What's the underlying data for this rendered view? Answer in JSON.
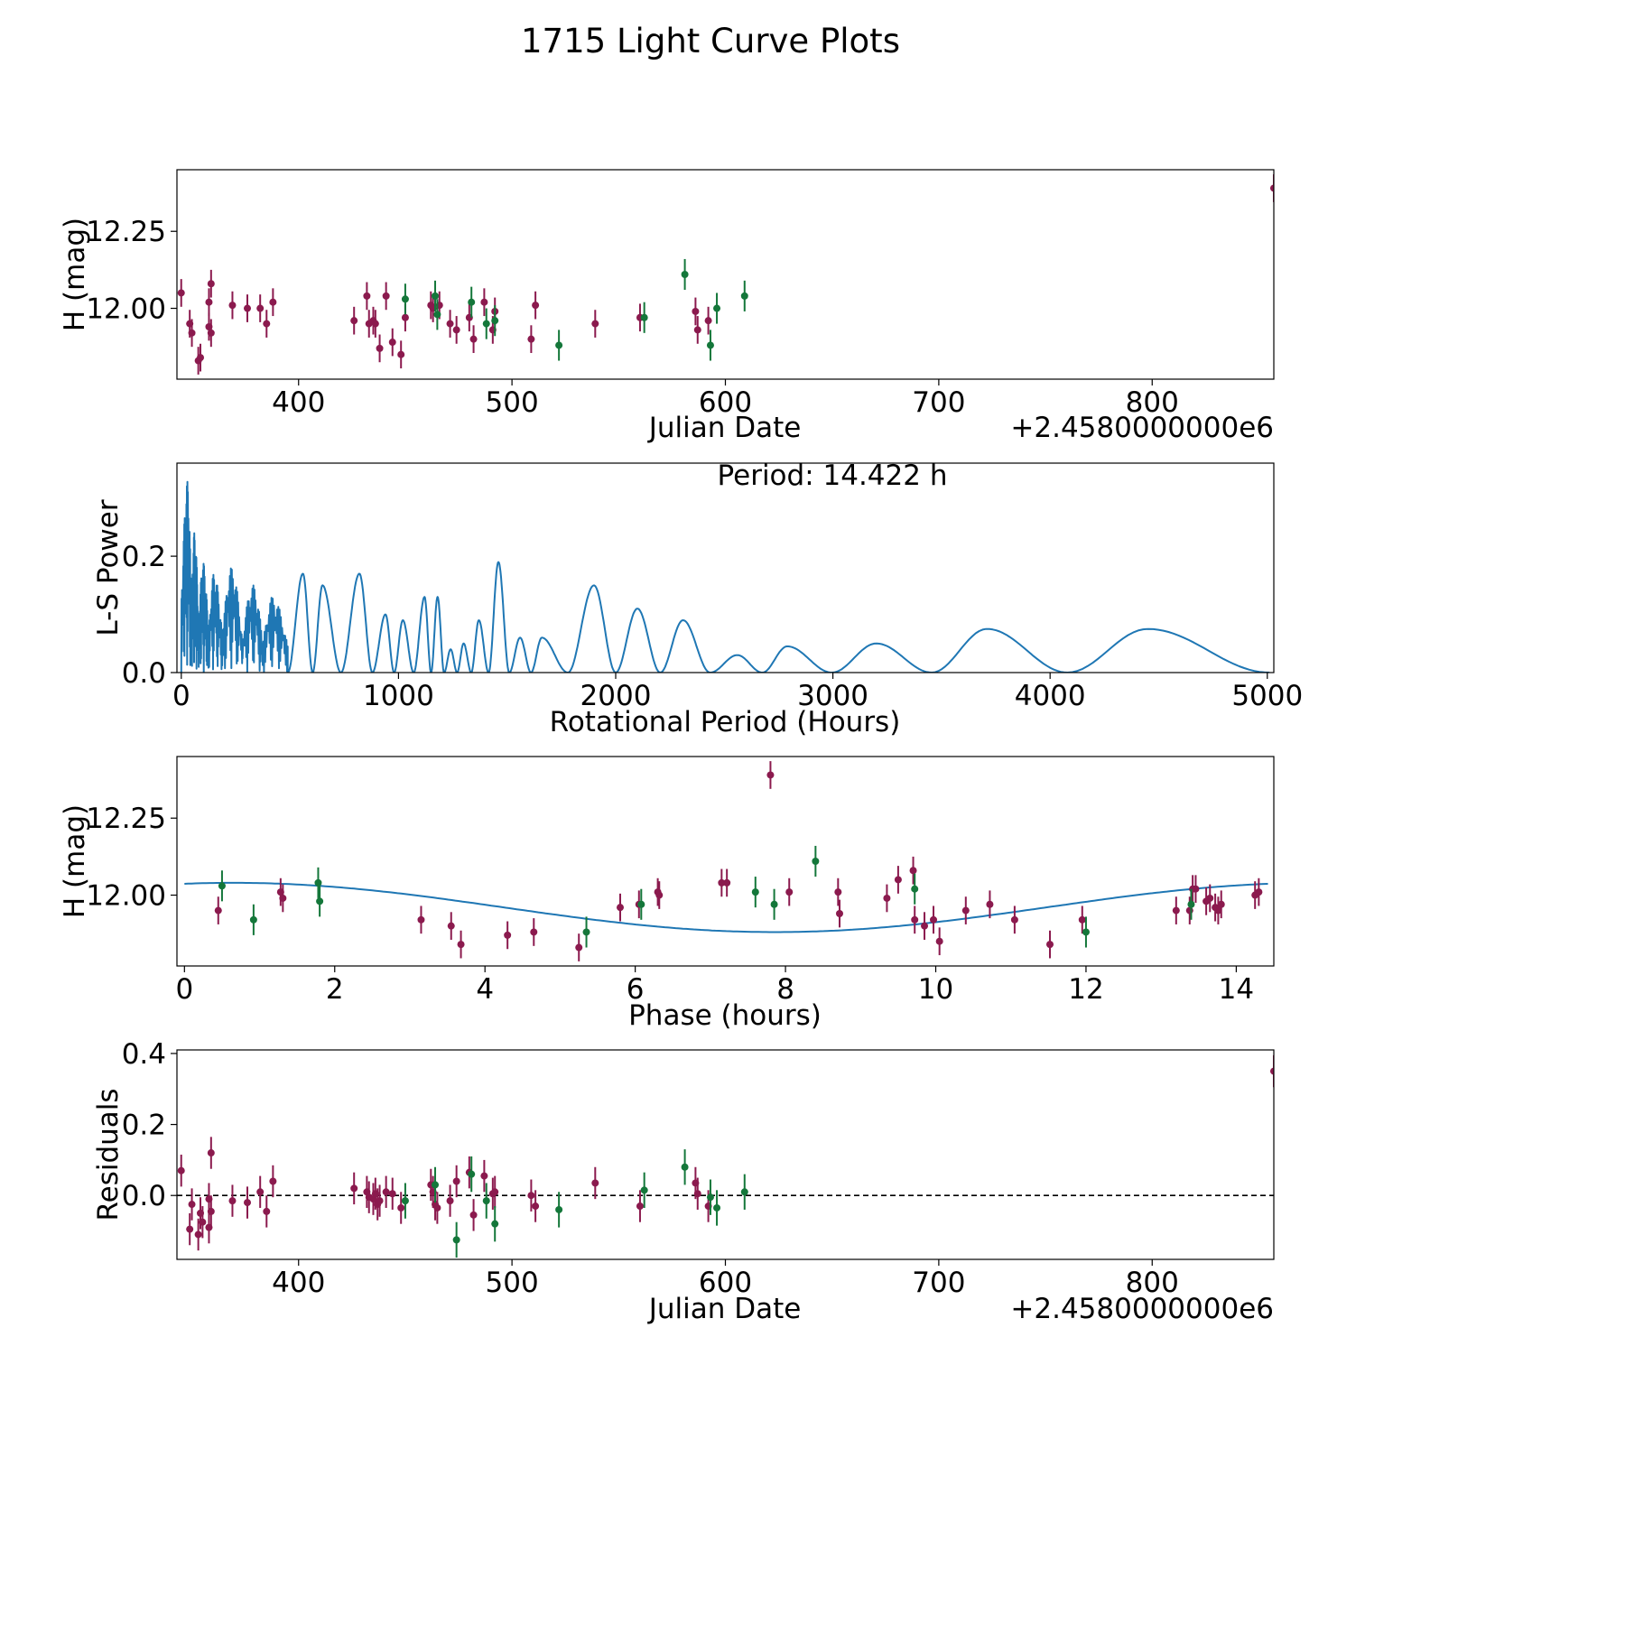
{
  "figure_title": "1715 Light Curve Plots",
  "colors": {
    "maroon": "#8b1a4e",
    "green": "#14773a",
    "line": "#1f77b4"
  },
  "chart_data": [
    {
      "type": "scatter",
      "name": "Light curve",
      "xlabel": "Julian Date",
      "ylabel": "H (mag)",
      "offset_text": "+2.4580000000e6",
      "xlim": [
        343,
        857
      ],
      "ylim": [
        11.77,
        12.45
      ],
      "xticks": [
        400,
        500,
        600,
        700,
        800
      ],
      "yticks": [
        12.0,
        12.25
      ],
      "ytick_labels": [
        "12.00",
        "12.25"
      ],
      "series": [
        {
          "name": "maroon",
          "color": "#8b1a4e",
          "err": 0.045,
          "points": [
            [
              345,
              12.05
            ],
            [
              349,
              11.95
            ],
            [
              350,
              11.92
            ],
            [
              353,
              11.83
            ],
            [
              354,
              11.84
            ],
            [
              358,
              12.02
            ],
            [
              358,
              11.94
            ],
            [
              359,
              12.08
            ],
            [
              359,
              11.92
            ],
            [
              369,
              12.01
            ],
            [
              376,
              12.0
            ],
            [
              382,
              12.0
            ],
            [
              385,
              11.95
            ],
            [
              388,
              12.02
            ],
            [
              426,
              11.96
            ],
            [
              432,
              12.04
            ],
            [
              433,
              11.95
            ],
            [
              435,
              11.96
            ],
            [
              436,
              11.95
            ],
            [
              438,
              11.87
            ],
            [
              441,
              12.04
            ],
            [
              444,
              11.89
            ],
            [
              448,
              11.85
            ],
            [
              450,
              11.97
            ],
            [
              462,
              12.01
            ],
            [
              463,
              12.0
            ],
            [
              466,
              12.01
            ],
            [
              471,
              11.95
            ],
            [
              474,
              11.93
            ],
            [
              480,
              11.97
            ],
            [
              482,
              11.9
            ],
            [
              487,
              12.02
            ],
            [
              491,
              11.93
            ],
            [
              492,
              11.99
            ],
            [
              509,
              11.9
            ],
            [
              511,
              12.01
            ],
            [
              539,
              11.95
            ],
            [
              560,
              11.97
            ],
            [
              586,
              11.99
            ],
            [
              587,
              11.93
            ],
            [
              592,
              11.96
            ],
            [
              857,
              12.39
            ]
          ]
        },
        {
          "name": "green",
          "color": "#14773a",
          "err": 0.05,
          "points": [
            [
              450,
              12.03
            ],
            [
              464,
              12.04
            ],
            [
              465,
              11.98
            ],
            [
              481,
              12.02
            ],
            [
              488,
              11.95
            ],
            [
              492,
              11.96
            ],
            [
              522,
              11.88
            ],
            [
              562,
              11.97
            ],
            [
              581,
              12.11
            ],
            [
              593,
              11.88
            ],
            [
              596,
              12.0
            ],
            [
              609,
              12.04
            ]
          ]
        }
      ]
    },
    {
      "type": "line",
      "name": "Periodogram",
      "xlabel": "Rotational Period (Hours)",
      "ylabel": "L-S Power",
      "annotation": "Period: 14.422 h",
      "xlim": [
        -20,
        5030
      ],
      "ylim": [
        0,
        0.36
      ],
      "xticks": [
        0,
        1000,
        2000,
        3000,
        4000,
        5000
      ],
      "yticks": [
        0.0,
        0.2
      ],
      "ytick_labels": [
        "0.0",
        "0.2"
      ],
      "peaks": [
        [
          30,
          0.33
        ],
        [
          60,
          0.24
        ],
        [
          100,
          0.19
        ],
        [
          150,
          0.17
        ],
        [
          230,
          0.18
        ],
        [
          330,
          0.15
        ],
        [
          420,
          0.13
        ],
        [
          560,
          0.17
        ],
        [
          650,
          0.15
        ],
        [
          820,
          0.17
        ],
        [
          940,
          0.1
        ],
        [
          1020,
          0.09
        ],
        [
          1120,
          0.13
        ],
        [
          1180,
          0.13
        ],
        [
          1240,
          0.04
        ],
        [
          1300,
          0.05
        ],
        [
          1370,
          0.09
        ],
        [
          1460,
          0.19
        ],
        [
          1560,
          0.06
        ],
        [
          1660,
          0.06
        ],
        [
          1900,
          0.15
        ],
        [
          2100,
          0.11
        ],
        [
          2310,
          0.09
        ],
        [
          2560,
          0.03
        ],
        [
          2790,
          0.045
        ],
        [
          3200,
          0.05
        ],
        [
          3710,
          0.075
        ],
        [
          4450,
          0.075
        ]
      ]
    },
    {
      "type": "scatter",
      "name": "Phased light curve",
      "xlabel": "Phase (hours)",
      "ylabel": "H (mag)",
      "xlim": [
        -0.1,
        14.5
      ],
      "ylim": [
        11.77,
        12.45
      ],
      "xticks": [
        0,
        2,
        4,
        6,
        8,
        10,
        12,
        14
      ],
      "yticks": [
        12.0,
        12.25
      ],
      "ytick_labels": [
        "12.00",
        "12.25"
      ],
      "model": {
        "type": "sine",
        "period_h": 14.422,
        "mean": 11.96,
        "amplitude": 0.08,
        "max_at_h": 0.65
      },
      "series": [
        {
          "name": "maroon",
          "color": "#8b1a4e",
          "err": 0.045,
          "points": [
            [
              0.45,
              11.95
            ],
            [
              1.28,
              12.01
            ],
            [
              1.31,
              11.99
            ],
            [
              3.15,
              11.92
            ],
            [
              3.55,
              11.9
            ],
            [
              3.68,
              11.84
            ],
            [
              4.3,
              11.87
            ],
            [
              4.65,
              11.88
            ],
            [
              5.25,
              11.83
            ],
            [
              5.8,
              11.96
            ],
            [
              6.05,
              11.97
            ],
            [
              6.3,
              12.01
            ],
            [
              6.32,
              12.0
            ],
            [
              7.15,
              12.04
            ],
            [
              7.22,
              12.04
            ],
            [
              7.8,
              12.39
            ],
            [
              8.05,
              12.01
            ],
            [
              8.7,
              12.01
            ],
            [
              8.72,
              11.94
            ],
            [
              9.35,
              11.99
            ],
            [
              9.5,
              12.05
            ],
            [
              9.7,
              12.08
            ],
            [
              9.72,
              11.92
            ],
            [
              9.85,
              11.9
            ],
            [
              9.97,
              11.92
            ],
            [
              10.05,
              11.85
            ],
            [
              10.4,
              11.95
            ],
            [
              10.72,
              11.97
            ],
            [
              11.05,
              11.92
            ],
            [
              11.52,
              11.84
            ],
            [
              11.95,
              11.92
            ],
            [
              13.2,
              11.95
            ],
            [
              13.38,
              11.95
            ],
            [
              13.42,
              12.02
            ],
            [
              13.46,
              12.02
            ],
            [
              13.6,
              11.98
            ],
            [
              13.65,
              11.99
            ],
            [
              13.72,
              11.96
            ],
            [
              13.76,
              11.95
            ],
            [
              13.8,
              11.97
            ],
            [
              14.25,
              12.0
            ],
            [
              14.3,
              12.01
            ]
          ]
        },
        {
          "name": "green",
          "color": "#14773a",
          "err": 0.05,
          "points": [
            [
              0.5,
              12.03
            ],
            [
              0.92,
              11.92
            ],
            [
              1.78,
              12.04
            ],
            [
              1.8,
              11.98
            ],
            [
              5.35,
              11.88
            ],
            [
              6.08,
              11.97
            ],
            [
              7.6,
              12.01
            ],
            [
              7.85,
              11.97
            ],
            [
              8.4,
              12.11
            ],
            [
              9.72,
              12.02
            ],
            [
              12.0,
              11.88
            ],
            [
              13.4,
              11.97
            ]
          ]
        }
      ]
    },
    {
      "type": "scatter",
      "name": "Residuals",
      "xlabel": "Julian Date",
      "ylabel": "Residuals",
      "offset_text": "+2.4580000000e6",
      "xlim": [
        343,
        857
      ],
      "ylim": [
        -0.18,
        0.41
      ],
      "xticks": [
        400,
        500,
        600,
        700,
        800
      ],
      "yticks": [
        0.0,
        0.2,
        0.4
      ],
      "ytick_labels": [
        "0.0",
        "0.2",
        "0.4"
      ],
      "reference_line": 0,
      "series": [
        {
          "name": "maroon",
          "color": "#8b1a4e",
          "err": 0.045,
          "points": [
            [
              345,
              0.07
            ],
            [
              349,
              -0.095
            ],
            [
              350,
              -0.025
            ],
            [
              353,
              -0.11
            ],
            [
              354,
              -0.05
            ],
            [
              355,
              -0.075
            ],
            [
              358,
              -0.01
            ],
            [
              358,
              -0.09
            ],
            [
              359,
              0.12
            ],
            [
              359,
              -0.045
            ],
            [
              369,
              -0.015
            ],
            [
              376,
              -0.02
            ],
            [
              382,
              0.01
            ],
            [
              385,
              -0.045
            ],
            [
              388,
              0.04
            ],
            [
              426,
              0.02
            ],
            [
              432,
              0.01
            ],
            [
              433,
              -0.005
            ],
            [
              435,
              -0.01
            ],
            [
              436,
              0.005
            ],
            [
              437,
              -0.025
            ],
            [
              438,
              -0.015
            ],
            [
              441,
              0.01
            ],
            [
              444,
              0.005
            ],
            [
              448,
              -0.035
            ],
            [
              462,
              0.03
            ],
            [
              463,
              0.01
            ],
            [
              464,
              -0.025
            ],
            [
              465,
              -0.035
            ],
            [
              471,
              -0.015
            ],
            [
              474,
              0.04
            ],
            [
              480,
              0.065
            ],
            [
              482,
              -0.055
            ],
            [
              487,
              0.055
            ],
            [
              491,
              0.005
            ],
            [
              492,
              0.01
            ],
            [
              509,
              0.0
            ],
            [
              511,
              -0.03
            ],
            [
              539,
              0.035
            ],
            [
              560,
              -0.03
            ],
            [
              586,
              0.035
            ],
            [
              587,
              0.005
            ],
            [
              592,
              -0.03
            ],
            [
              857,
              0.35
            ]
          ]
        },
        {
          "name": "green",
          "color": "#14773a",
          "err": 0.05,
          "points": [
            [
              450,
              -0.015
            ],
            [
              464,
              0.03
            ],
            [
              474,
              -0.125
            ],
            [
              481,
              0.06
            ],
            [
              488,
              -0.015
            ],
            [
              492,
              -0.08
            ],
            [
              522,
              -0.04
            ],
            [
              562,
              0.015
            ],
            [
              581,
              0.08
            ],
            [
              593,
              -0.005
            ],
            [
              596,
              -0.035
            ],
            [
              609,
              0.01
            ]
          ]
        }
      ]
    }
  ]
}
